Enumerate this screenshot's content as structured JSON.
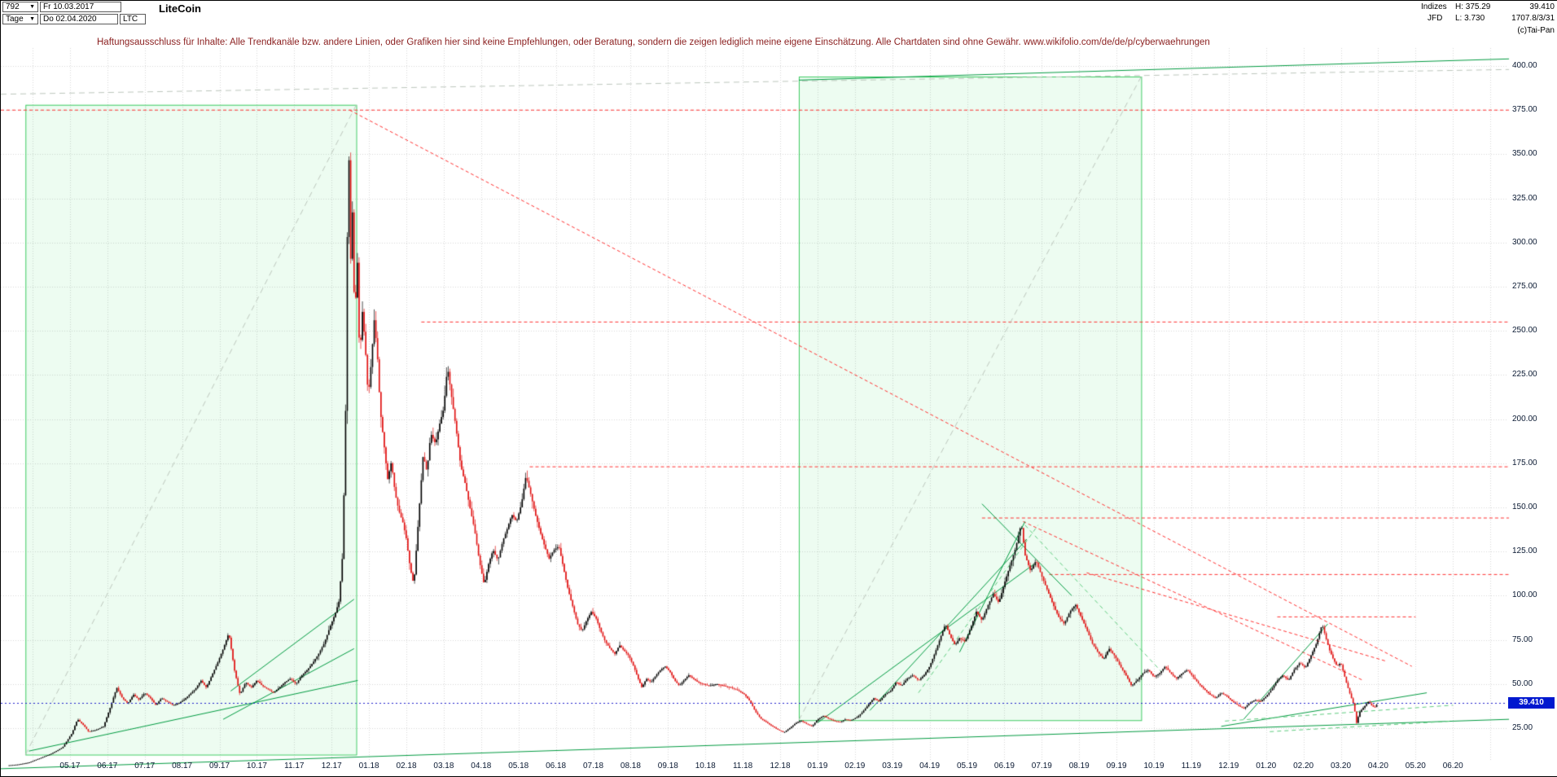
{
  "header": {
    "bars_count": "792",
    "date_from": "Fr 10.03.2017",
    "timeframe": "Tage",
    "date_to": "Do 02.04.2020",
    "symbol": "LTC",
    "instrument": "LiteCoin",
    "indices_label": "Indizes",
    "provider": "JFD",
    "high_label": "H: 375.29",
    "low_label": "L: 3.730",
    "last_value": "39.410",
    "extra_value": "1707.8/3/31",
    "copyright": "(c)Tai-Pan"
  },
  "disclaimer": "Haftungsausschluss für Inhalte: Alle Trendkanäle bzw. andere Linien, oder Grafiken hier sind keine Empfehlungen, oder Beratung, sondern die zeigen lediglich meine eigene Einschätzung. Alle Chartdaten sind ohne Gewähr.  www.wikifolio.com/de/de/p/cyberwaehrungen",
  "palette": {
    "candle_up": "#000000",
    "candle_down": "#e01010",
    "grid": "#d6d6d6",
    "red_line": "#ff3030",
    "green_line": "#009a40",
    "green_dash": "#5ecb7e",
    "gray_dash": "#bcc6bc",
    "blue_line": "#2020cc",
    "tag_bg": "#0018cf",
    "tag_text": "#ffffff",
    "box_fill": "rgba(110,230,140,0.12)",
    "box_stroke": "#3ecb62",
    "axis_text": "#0b1a33",
    "disclaimer_text": "#8b1f1f"
  },
  "chart_data": {
    "type": "candlestick",
    "title": "LiteCoin",
    "symbol": "LTC",
    "timeframe": "Tage",
    "date_range": [
      "10.03.2017",
      "02.04.2020"
    ],
    "high": 375.29,
    "low": 3.73,
    "last_price": 39.41,
    "last_price_label": "39.410",
    "ylim": [
      0,
      410
    ],
    "grid": true,
    "y_ticks": [
      "400.00",
      "375.00",
      "350.00",
      "325.00",
      "300.00",
      "275.00",
      "250.00",
      "225.00",
      "200.00",
      "175.00",
      "150.00",
      "125.00",
      "100.00",
      "75.00",
      "50.00",
      "25.00"
    ],
    "x_ticks": [
      "05.17",
      "06.17",
      "07.17",
      "08.17",
      "09.17",
      "10.17",
      "11.17",
      "12.17",
      "01.18",
      "02.18",
      "03.18",
      "04.18",
      "05.18",
      "06.18",
      "07.18",
      "08.18",
      "09.18",
      "10.18",
      "11.18",
      "12.18",
      "01.19",
      "02.19",
      "03.19",
      "04.19",
      "05.19",
      "06.19",
      "07.19",
      "08.19",
      "09.19",
      "10.19",
      "11.19",
      "12.19",
      "01.20",
      "02.20",
      "03.20",
      "04.20",
      "05.20",
      "06.20"
    ],
    "anchors": [
      [
        2.33,
        3.9
      ],
      [
        2.6,
        4.4
      ],
      [
        2.9,
        5.5
      ],
      [
        3.2,
        8
      ],
      [
        3.5,
        10.5
      ],
      [
        3.8,
        14
      ],
      [
        4.05,
        22
      ],
      [
        4.2,
        30
      ],
      [
        4.35,
        27
      ],
      [
        4.5,
        23
      ],
      [
        4.7,
        24
      ],
      [
        4.9,
        26
      ],
      [
        5.1,
        38
      ],
      [
        5.25,
        48
      ],
      [
        5.4,
        42
      ],
      [
        5.55,
        39
      ],
      [
        5.7,
        44
      ],
      [
        5.85,
        41
      ],
      [
        6.0,
        45
      ],
      [
        6.15,
        42
      ],
      [
        6.3,
        38
      ],
      [
        6.45,
        42
      ],
      [
        6.6,
        40
      ],
      [
        6.75,
        38
      ],
      [
        6.9,
        39
      ],
      [
        7.05,
        41
      ],
      [
        7.2,
        44
      ],
      [
        7.35,
        47
      ],
      [
        7.5,
        52
      ],
      [
        7.65,
        48
      ],
      [
        7.8,
        55
      ],
      [
        7.95,
        62
      ],
      [
        8.1,
        70
      ],
      [
        8.25,
        79
      ],
      [
        8.4,
        58
      ],
      [
        8.55,
        44
      ],
      [
        8.7,
        51
      ],
      [
        8.85,
        48
      ],
      [
        9.0,
        52
      ],
      [
        9.15,
        49
      ],
      [
        9.3,
        47
      ],
      [
        9.45,
        45
      ],
      [
        9.6,
        48
      ],
      [
        9.75,
        51
      ],
      [
        9.9,
        53
      ],
      [
        10.05,
        50
      ],
      [
        10.2,
        55
      ],
      [
        10.35,
        58
      ],
      [
        10.5,
        62
      ],
      [
        10.65,
        67
      ],
      [
        10.8,
        73
      ],
      [
        10.95,
        82
      ],
      [
        11.1,
        90
      ],
      [
        11.2,
        97
      ],
      [
        11.3,
        125
      ],
      [
        11.38,
        210
      ],
      [
        11.45,
        373
      ],
      [
        11.5,
        285
      ],
      [
        11.56,
        320
      ],
      [
        11.62,
        248
      ],
      [
        11.68,
        298
      ],
      [
        11.75,
        232
      ],
      [
        11.82,
        262
      ],
      [
        11.9,
        242
      ],
      [
        11.98,
        212
      ],
      [
        12.06,
        232
      ],
      [
        12.14,
        256
      ],
      [
        12.22,
        238
      ],
      [
        12.3,
        205
      ],
      [
        12.4,
        186
      ],
      [
        12.5,
        166
      ],
      [
        12.6,
        176
      ],
      [
        12.7,
        158
      ],
      [
        12.8,
        148
      ],
      [
        12.9,
        142
      ],
      [
        13.0,
        132
      ],
      [
        13.1,
        116
      ],
      [
        13.2,
        106
      ],
      [
        13.32,
        142
      ],
      [
        13.45,
        180
      ],
      [
        13.55,
        170
      ],
      [
        13.65,
        192
      ],
      [
        13.78,
        186
      ],
      [
        13.9,
        198
      ],
      [
        14.0,
        206
      ],
      [
        14.1,
        230
      ],
      [
        14.2,
        214
      ],
      [
        14.32,
        196
      ],
      [
        14.45,
        174
      ],
      [
        14.58,
        163
      ],
      [
        14.7,
        150
      ],
      [
        14.82,
        138
      ],
      [
        14.95,
        120
      ],
      [
        15.08,
        106
      ],
      [
        15.2,
        118
      ],
      [
        15.32,
        126
      ],
      [
        15.45,
        120
      ],
      [
        15.58,
        131
      ],
      [
        15.7,
        138
      ],
      [
        15.82,
        146
      ],
      [
        15.95,
        142
      ],
      [
        16.08,
        152
      ],
      [
        16.2,
        168
      ],
      [
        16.32,
        158
      ],
      [
        16.45,
        146
      ],
      [
        16.58,
        136
      ],
      [
        16.7,
        128
      ],
      [
        16.82,
        121
      ],
      [
        16.95,
        126
      ],
      [
        17.08,
        128
      ],
      [
        17.2,
        116
      ],
      [
        17.32,
        104
      ],
      [
        17.45,
        94
      ],
      [
        17.58,
        84
      ],
      [
        17.7,
        80
      ],
      [
        17.82,
        86
      ],
      [
        17.95,
        91
      ],
      [
        18.08,
        87
      ],
      [
        18.2,
        80
      ],
      [
        18.32,
        74
      ],
      [
        18.45,
        70
      ],
      [
        18.58,
        67
      ],
      [
        18.7,
        72
      ],
      [
        18.82,
        69
      ],
      [
        18.95,
        66
      ],
      [
        19.08,
        60
      ],
      [
        19.2,
        53
      ],
      [
        19.3,
        48
      ],
      [
        19.42,
        53
      ],
      [
        19.55,
        51
      ],
      [
        19.68,
        55
      ],
      [
        19.8,
        58
      ],
      [
        19.92,
        60
      ],
      [
        20.05,
        57
      ],
      [
        20.18,
        52
      ],
      [
        20.3,
        49
      ],
      [
        20.42,
        52
      ],
      [
        20.55,
        55
      ],
      [
        20.68,
        53
      ],
      [
        20.8,
        51
      ],
      [
        20.95,
        50
      ],
      [
        21.1,
        49
      ],
      [
        21.3,
        50
      ],
      [
        21.5,
        49
      ],
      [
        21.7,
        48
      ],
      [
        21.9,
        46
      ],
      [
        22.05,
        44
      ],
      [
        22.2,
        40
      ],
      [
        22.35,
        34
      ],
      [
        22.5,
        30
      ],
      [
        22.65,
        28
      ],
      [
        22.8,
        26
      ],
      [
        22.95,
        24
      ],
      [
        23.1,
        22.5
      ],
      [
        23.25,
        25
      ],
      [
        23.4,
        27.5
      ],
      [
        23.55,
        29.5
      ],
      [
        23.7,
        27.5
      ],
      [
        23.85,
        26
      ],
      [
        24.0,
        30
      ],
      [
        24.15,
        32
      ],
      [
        24.3,
        30.5
      ],
      [
        24.45,
        29
      ],
      [
        24.6,
        28.5
      ],
      [
        24.75,
        30
      ],
      [
        24.9,
        29.5
      ],
      [
        25.05,
        31
      ],
      [
        25.2,
        34
      ],
      [
        25.35,
        38
      ],
      [
        25.5,
        42
      ],
      [
        25.65,
        40
      ],
      [
        25.8,
        44
      ],
      [
        25.95,
        46
      ],
      [
        26.1,
        51
      ],
      [
        26.25,
        49
      ],
      [
        26.4,
        53
      ],
      [
        26.55,
        55
      ],
      [
        26.7,
        52
      ],
      [
        26.85,
        55
      ],
      [
        27.0,
        60
      ],
      [
        27.15,
        68
      ],
      [
        27.3,
        77
      ],
      [
        27.42,
        84
      ],
      [
        27.55,
        77
      ],
      [
        27.68,
        72
      ],
      [
        27.8,
        76
      ],
      [
        27.95,
        74
      ],
      [
        28.1,
        82
      ],
      [
        28.25,
        91
      ],
      [
        28.4,
        86
      ],
      [
        28.55,
        94
      ],
      [
        28.7,
        101
      ],
      [
        28.85,
        96
      ],
      [
        29.0,
        107
      ],
      [
        29.15,
        117
      ],
      [
        29.3,
        127
      ],
      [
        29.45,
        141
      ],
      [
        29.55,
        123
      ],
      [
        29.7,
        114
      ],
      [
        29.85,
        120
      ],
      [
        30.0,
        111
      ],
      [
        30.15,
        103
      ],
      [
        30.3,
        95
      ],
      [
        30.45,
        88
      ],
      [
        30.6,
        84
      ],
      [
        30.75,
        91
      ],
      [
        30.9,
        95
      ],
      [
        31.05,
        88
      ],
      [
        31.2,
        81
      ],
      [
        31.35,
        73
      ],
      [
        31.5,
        68
      ],
      [
        31.65,
        64
      ],
      [
        31.8,
        70
      ],
      [
        31.95,
        66
      ],
      [
        32.1,
        60
      ],
      [
        32.25,
        55
      ],
      [
        32.4,
        49
      ],
      [
        32.55,
        52
      ],
      [
        32.7,
        56
      ],
      [
        32.85,
        58
      ],
      [
        33.0,
        54
      ],
      [
        33.15,
        56
      ],
      [
        33.3,
        60
      ],
      [
        33.45,
        56
      ],
      [
        33.6,
        53
      ],
      [
        33.75,
        56
      ],
      [
        33.9,
        58
      ],
      [
        34.05,
        54
      ],
      [
        34.2,
        50
      ],
      [
        34.35,
        47
      ],
      [
        34.5,
        44
      ],
      [
        34.65,
        42
      ],
      [
        34.8,
        45
      ],
      [
        34.95,
        43
      ],
      [
        35.1,
        40
      ],
      [
        35.25,
        38
      ],
      [
        35.4,
        36
      ],
      [
        35.55,
        39
      ],
      [
        35.7,
        41
      ],
      [
        35.85,
        40
      ],
      [
        36.0,
        43
      ],
      [
        36.15,
        47
      ],
      [
        36.3,
        52
      ],
      [
        36.45,
        55
      ],
      [
        36.6,
        52
      ],
      [
        36.75,
        58
      ],
      [
        36.9,
        62
      ],
      [
        37.05,
        59
      ],
      [
        37.2,
        66
      ],
      [
        37.35,
        73
      ],
      [
        37.5,
        84
      ],
      [
        37.6,
        76
      ],
      [
        37.7,
        69
      ],
      [
        37.8,
        64
      ],
      [
        37.9,
        60
      ],
      [
        38.0,
        62
      ],
      [
        38.08,
        56
      ],
      [
        38.16,
        50
      ],
      [
        38.25,
        44
      ],
      [
        38.35,
        38
      ],
      [
        38.42,
        28
      ],
      [
        38.5,
        34
      ],
      [
        38.58,
        36
      ],
      [
        38.66,
        38
      ],
      [
        38.74,
        40
      ],
      [
        38.82,
        38
      ],
      [
        38.9,
        36.5
      ],
      [
        39.0,
        39.41
      ]
    ],
    "lines": [
      [
        2.15,
        375,
        42.5,
        375,
        "rd"
      ],
      [
        13.4,
        255,
        42.5,
        255,
        "rd"
      ],
      [
        16.3,
        173,
        42.5,
        173,
        "rd"
      ],
      [
        28.4,
        144,
        42.5,
        144,
        "rd"
      ],
      [
        30.2,
        112,
        42.5,
        112,
        "rd"
      ],
      [
        36.3,
        88,
        40.0,
        88,
        "rd"
      ],
      [
        11.48,
        375,
        39.9,
        60,
        "rd"
      ],
      [
        29.5,
        142,
        38.6,
        52,
        "rd"
      ],
      [
        31.2,
        113,
        39.2,
        63,
        "rd"
      ],
      [
        2.81,
        10,
        11.66,
        378,
        "xd"
      ],
      [
        23.5,
        29.5,
        32.66,
        394,
        "xd"
      ],
      [
        2.15,
        384,
        42.5,
        398,
        "xd"
      ],
      [
        23.5,
        392,
        42.5,
        404,
        "gs"
      ],
      [
        2.15,
        2,
        42.5,
        30,
        "gs"
      ],
      [
        2.9,
        12,
        11.7,
        52,
        "gs"
      ],
      [
        8.1,
        30,
        11.6,
        70,
        "gs"
      ],
      [
        8.3,
        46,
        11.6,
        98,
        "gs"
      ],
      [
        24.0,
        28,
        29.8,
        118,
        "gs"
      ],
      [
        25.4,
        35,
        29.6,
        132,
        "gs"
      ],
      [
        27.8,
        68,
        29.55,
        142,
        "gs"
      ],
      [
        28.4,
        152,
        30.8,
        100,
        "gs"
      ],
      [
        35.4,
        30,
        37.65,
        84,
        "gs"
      ],
      [
        34.8,
        26,
        40.3,
        45,
        "gs"
      ],
      [
        26.7,
        45,
        29.9,
        140,
        "gd"
      ],
      [
        29.55,
        140,
        33.2,
        57,
        "gd"
      ],
      [
        34.9,
        29,
        41.0,
        38,
        "gd"
      ],
      [
        36.1,
        23,
        41.0,
        29,
        "gd"
      ]
    ],
    "boxes": [
      {
        "t1": 2.81,
        "p1": 10,
        "t2": 11.66,
        "p2": 378
      },
      {
        "t1": 23.5,
        "p1": 29.5,
        "t2": 32.66,
        "p2": 394
      }
    ]
  }
}
